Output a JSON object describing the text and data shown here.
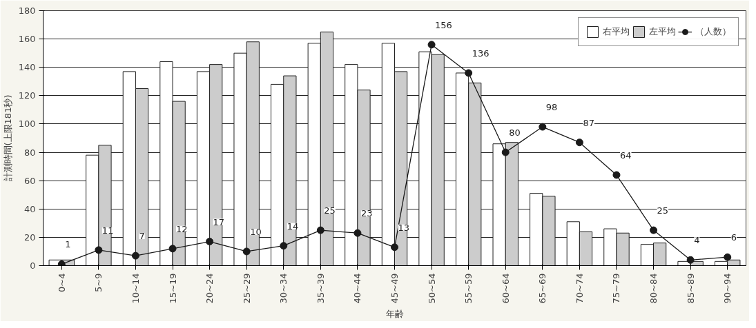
{
  "chart_data": {
    "type": "bar",
    "xlabel": "年齢",
    "ylabel": "計測時間(上限181秒)",
    "categories": [
      "0~4",
      "5~9",
      "10~14",
      "15~19",
      "20~24",
      "25~29",
      "30~34",
      "35~39",
      "40~44",
      "45~49",
      "50~54",
      "55~59",
      "60~64",
      "65~69",
      "70~74",
      "75~79",
      "80~84",
      "85~89",
      "90~94"
    ],
    "series": [
      {
        "name": "右平均",
        "color": "#ffffff",
        "values": [
          4,
          78,
          137,
          144,
          137,
          150,
          128,
          157,
          142,
          157,
          151,
          136,
          86,
          51,
          31,
          26,
          15,
          3,
          3
        ]
      },
      {
        "name": "左平均",
        "color": "#cccccc",
        "values": [
          4,
          85,
          125,
          116,
          142,
          158,
          134,
          165,
          124,
          137,
          149,
          129,
          87,
          49,
          24,
          23,
          16,
          3,
          4
        ]
      },
      {
        "name": "（人数）",
        "type": "line",
        "color": "#1a1a1a",
        "marker": "circle",
        "values": [
          1,
          11,
          7,
          12,
          17,
          10,
          14,
          25,
          23,
          13,
          156,
          136,
          80,
          98,
          87,
          64,
          25,
          4,
          6
        ],
        "value_labels": [
          "1",
          "11",
          "7",
          "12",
          "17",
          "10",
          "14",
          "25",
          "23",
          "13",
          "156",
          "136",
          "80",
          "98",
          "87",
          "64",
          "25",
          "4",
          "6"
        ]
      }
    ],
    "ylim": [
      0,
      180
    ],
    "yticks": [
      0,
      20,
      40,
      60,
      80,
      100,
      120,
      140,
      160,
      180
    ],
    "grid": "y",
    "legend": "top right"
  }
}
